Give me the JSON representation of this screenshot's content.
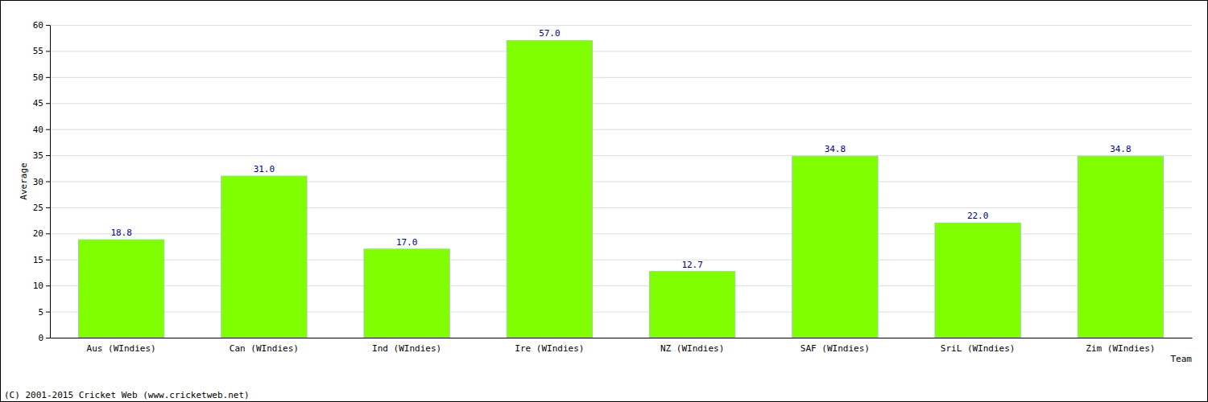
{
  "chart_data": {
    "type": "bar",
    "x_label": "Team",
    "y_label": "Average",
    "annotations": [
      "(C) 2001-2015 Cricket Web (www.cricketweb.net)"
    ],
    "categories": [
      "Aus (WIndies)",
      "Can (WIndies)",
      "Ind (WIndies)",
      "Ire (WIndies)",
      "NZ (WIndies)",
      "SAF (WIndies)",
      "SriL (WIndies)",
      "Zim (WIndies)"
    ],
    "values": [
      18.8,
      31.0,
      17.0,
      57.0,
      12.7,
      34.8,
      22.0,
      34.8
    ],
    "value_labels": [
      "18.8",
      "31.0",
      "17.0",
      "57.0",
      "12.7",
      "34.8",
      "22.0",
      "34.8"
    ],
    "color": "#80ff00",
    "ylim": [
      0,
      60
    ],
    "yticks": [
      0,
      5,
      10,
      15,
      20,
      25,
      30,
      35,
      40,
      45,
      50,
      55,
      60
    ],
    "grid": true,
    "data_labels": true
  }
}
